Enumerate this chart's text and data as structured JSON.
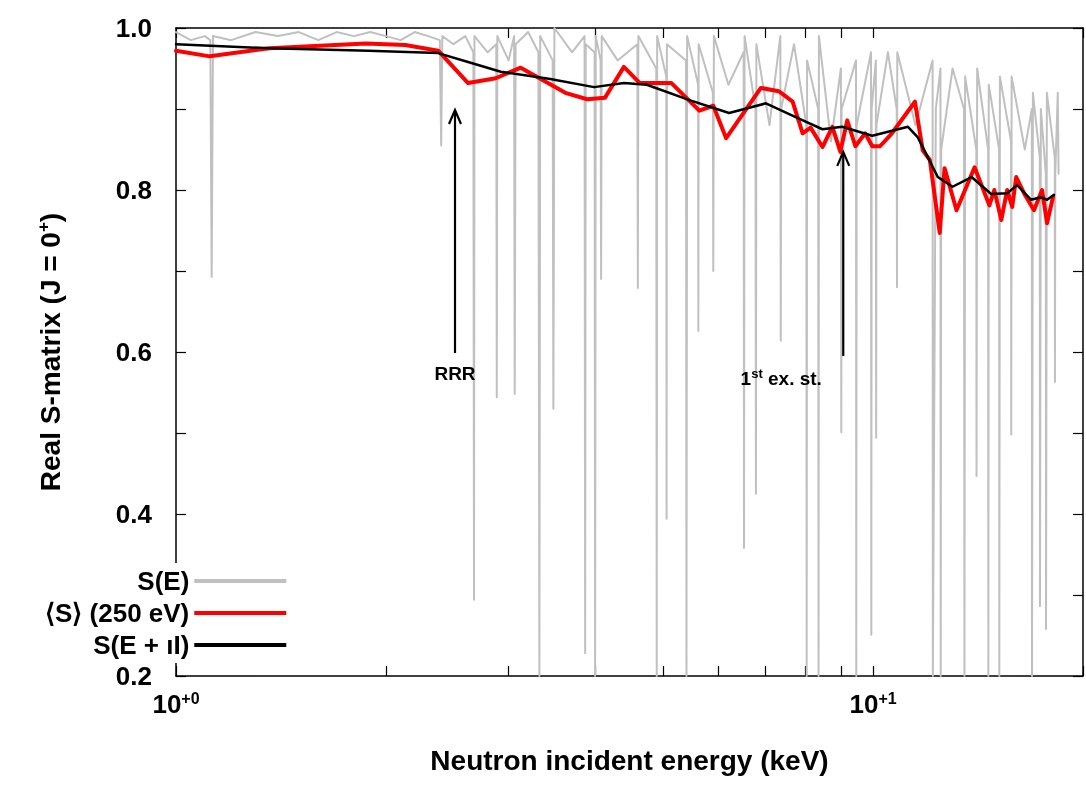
{
  "chart_data": {
    "type": "line",
    "xlabel": "Neutron incident energy (keV)",
    "ylabel": "Real S-matrix (J = 0$^{+}$)",
    "log": "x",
    "xlim": [
      1,
      20
    ],
    "xticks": [
      {
        "value": 1,
        "label": "10$^{+0}$"
      },
      {
        "value": 2,
        "label": null
      },
      {
        "value": 3,
        "label": null
      },
      {
        "value": 4,
        "label": null
      },
      {
        "value": 5,
        "label": null
      },
      {
        "value": 6,
        "label": null
      },
      {
        "value": 7,
        "label": null
      },
      {
        "value": 8,
        "label": null
      },
      {
        "value": 9,
        "label": null
      },
      {
        "value": 10,
        "label": "10$^{+1}$"
      },
      {
        "value": 20,
        "label": null
      }
    ],
    "ylim": [
      0.2,
      1.0
    ],
    "yticks": [
      {
        "value": 0.2,
        "label": "0.2"
      },
      {
        "value": 0.3,
        "label": null
      },
      {
        "value": 0.4,
        "label": "0.4"
      },
      {
        "value": 0.5,
        "label": null
      },
      {
        "value": 0.6,
        "label": "0.6"
      },
      {
        "value": 0.7,
        "label": null
      },
      {
        "value": 0.8,
        "label": "0.8"
      },
      {
        "value": 0.9,
        "label": null
      },
      {
        "value": 1.0,
        "label": "1.0"
      }
    ],
    "grid": false,
    "legend": "bottom left",
    "marker": "none",
    "annotations": [
      "RRR",
      {
        "text": "1$^{st}$ ex. st.",
        "x": 9.06,
        "y": 0.847
      }
    ],
    "series": [
      {
        "name": "S(E)",
        "color": "#c0c0c0",
        "x": [
          1.0,
          1.05,
          1.1,
          1.12,
          1.125,
          1.13,
          1.2,
          1.3,
          1.4,
          1.5,
          1.6,
          1.7,
          1.8,
          1.9,
          2.0,
          2.1,
          2.2,
          2.3,
          2.39,
          2.401,
          2.41,
          2.5,
          2.6,
          2.67,
          2.676,
          2.68,
          2.8,
          2.88,
          2.885,
          2.89,
          3.0,
          3.055,
          3.061,
          3.07,
          3.2,
          3.31,
          3.321,
          3.33,
          3.47,
          3.478,
          3.49,
          3.7,
          3.855,
          3.863,
          3.87,
          3.985,
          3.992,
          4.0,
          4.065,
          4.072,
          4.08,
          4.3,
          4.59,
          4.597,
          4.605,
          4.885,
          4.893,
          4.9,
          5.05,
          5.055,
          5.06,
          5.39,
          5.398,
          5.41,
          5.61,
          5.614,
          5.62,
          5.89,
          5.898,
          5.91,
          6.2,
          6.52,
          6.528,
          6.54,
          6.78,
          6.79,
          6.8,
          7.1,
          7.36,
          7.37,
          7.38,
          7.7,
          8.02,
          8.029,
          8.04,
          8.34,
          8.35,
          8.36,
          8.7,
          8.99,
          9.002,
          9.01,
          9.45,
          9.458,
          9.47,
          9.93,
          9.94,
          9.95,
          10.09,
          10.1,
          10.11,
          10.5,
          10.81,
          10.82,
          10.83,
          11.5,
          12.17,
          12.18,
          12.3,
          12.49,
          12.5,
          12.52,
          13.0,
          13.5,
          13.52,
          13.55,
          14.06,
          14.07,
          14.1,
          14.62,
          14.63,
          14.65,
          15.16,
          15.17,
          15.2,
          15.77,
          15.78,
          15.8,
          16.5,
          16.89,
          16.9,
          16.95,
          17.34,
          17.35,
          17.4,
          17.69,
          17.7,
          17.75,
          18.22,
          18.23,
          18.25,
          18.4,
          18.45
        ],
        "values": [
          0.995,
          0.985,
          0.99,
          0.985,
          0.693,
          0.99,
          0.985,
          0.995,
          0.99,
          0.995,
          0.985,
          0.995,
          0.99,
          0.995,
          0.99,
          0.985,
          0.995,
          0.99,
          0.985,
          0.855,
          0.99,
          0.98,
          0.99,
          0.97,
          0.294,
          0.99,
          0.97,
          0.98,
          0.544,
          0.99,
          0.96,
          0.99,
          0.548,
          0.98,
          0.995,
          0.97,
          0.2,
          0.99,
          0.96,
          0.53,
          1.0,
          0.97,
          0.99,
          0.228,
          0.98,
          0.97,
          0.2,
          0.99,
          0.96,
          0.69,
          0.99,
          0.96,
          0.98,
          0.679,
          0.99,
          0.95,
          0.2,
          0.99,
          0.94,
          0.394,
          0.98,
          0.96,
          0.2,
          0.99,
          0.93,
          0.626,
          0.98,
          0.92,
          0.7,
          0.99,
          0.93,
          0.97,
          0.358,
          0.99,
          0.9,
          0.425,
          0.98,
          0.88,
          0.99,
          0.614,
          0.9,
          0.98,
          0.88,
          0.2,
          0.96,
          0.9,
          0.2,
          0.99,
          0.86,
          0.95,
          0.501,
          0.9,
          0.96,
          0.2,
          0.88,
          0.97,
          0.251,
          0.9,
          0.96,
          0.494,
          0.88,
          0.97,
          0.9,
          0.68,
          0.97,
          0.88,
          0.96,
          0.2,
          0.9,
          0.95,
          0.2,
          0.85,
          0.95,
          0.9,
          0.2,
          0.94,
          0.85,
          0.447,
          0.95,
          0.85,
          0.2,
          0.93,
          0.85,
          0.2,
          0.94,
          0.86,
          0.498,
          0.94,
          0.85,
          0.9,
          0.2,
          0.92,
          0.84,
          0.286,
          0.9,
          0.82,
          0.258,
          0.92,
          0.84,
          0.563,
          0.82,
          0.92,
          0.82
        ]
      },
      {
        "name": "⟨S⟩ (250 eV)",
        "color": "#ff0000",
        "x": [
          1.0,
          1.118,
          1.361,
          1.871,
          2.133,
          2.377,
          2.624,
          2.875,
          3.122,
          3.618,
          3.888,
          4.125,
          4.39,
          4.627,
          5.137,
          5.632,
          5.898,
          6.154,
          6.902,
          7.322,
          7.665,
          7.922,
          8.133,
          8.459,
          8.74,
          8.974,
          9.18,
          9.43,
          9.74,
          9.97,
          10.23,
          10.64,
          11.48,
          11.78,
          12.06,
          12.46,
          12.66,
          13.17,
          13.98,
          14.68,
          14.92,
          15.27,
          15.57,
          15.83,
          16.04,
          16.46,
          17.01,
          17.47,
          17.76,
          18.11
        ],
        "values": [
          0.972,
          0.965,
          0.975,
          0.981,
          0.979,
          0.972,
          0.932,
          0.938,
          0.951,
          0.92,
          0.912,
          0.914,
          0.952,
          0.932,
          0.932,
          0.898,
          0.904,
          0.864,
          0.926,
          0.922,
          0.909,
          0.87,
          0.877,
          0.853,
          0.878,
          0.847,
          0.886,
          0.854,
          0.87,
          0.854,
          0.854,
          0.87,
          0.909,
          0.849,
          0.837,
          0.747,
          0.827,
          0.775,
          0.828,
          0.781,
          0.8,
          0.763,
          0.8,
          0.779,
          0.816,
          0.796,
          0.775,
          0.8,
          0.759,
          0.791
        ]
      },
      {
        "name": "S(E + ıI)",
        "color": "#000000",
        "x": [
          1.0,
          1.361,
          1.889,
          2.377,
          2.624,
          2.923,
          3.443,
          3.978,
          4.39,
          4.735,
          5.452,
          6.214,
          7.018,
          7.743,
          8.459,
          9.03,
          9.97,
          11.22,
          11.59,
          12.38,
          13.0,
          13.84,
          14.77,
          15.57,
          16.09,
          16.84,
          17.41,
          17.76,
          18.17
        ],
        "values": [
          0.98,
          0.975,
          0.972,
          0.969,
          0.958,
          0.946,
          0.937,
          0.927,
          0.932,
          0.93,
          0.911,
          0.895,
          0.907,
          0.89,
          0.875,
          0.878,
          0.867,
          0.878,
          0.865,
          0.816,
          0.804,
          0.816,
          0.795,
          0.796,
          0.806,
          0.788,
          0.791,
          0.788,
          0.794
        ]
      }
    ]
  }
}
